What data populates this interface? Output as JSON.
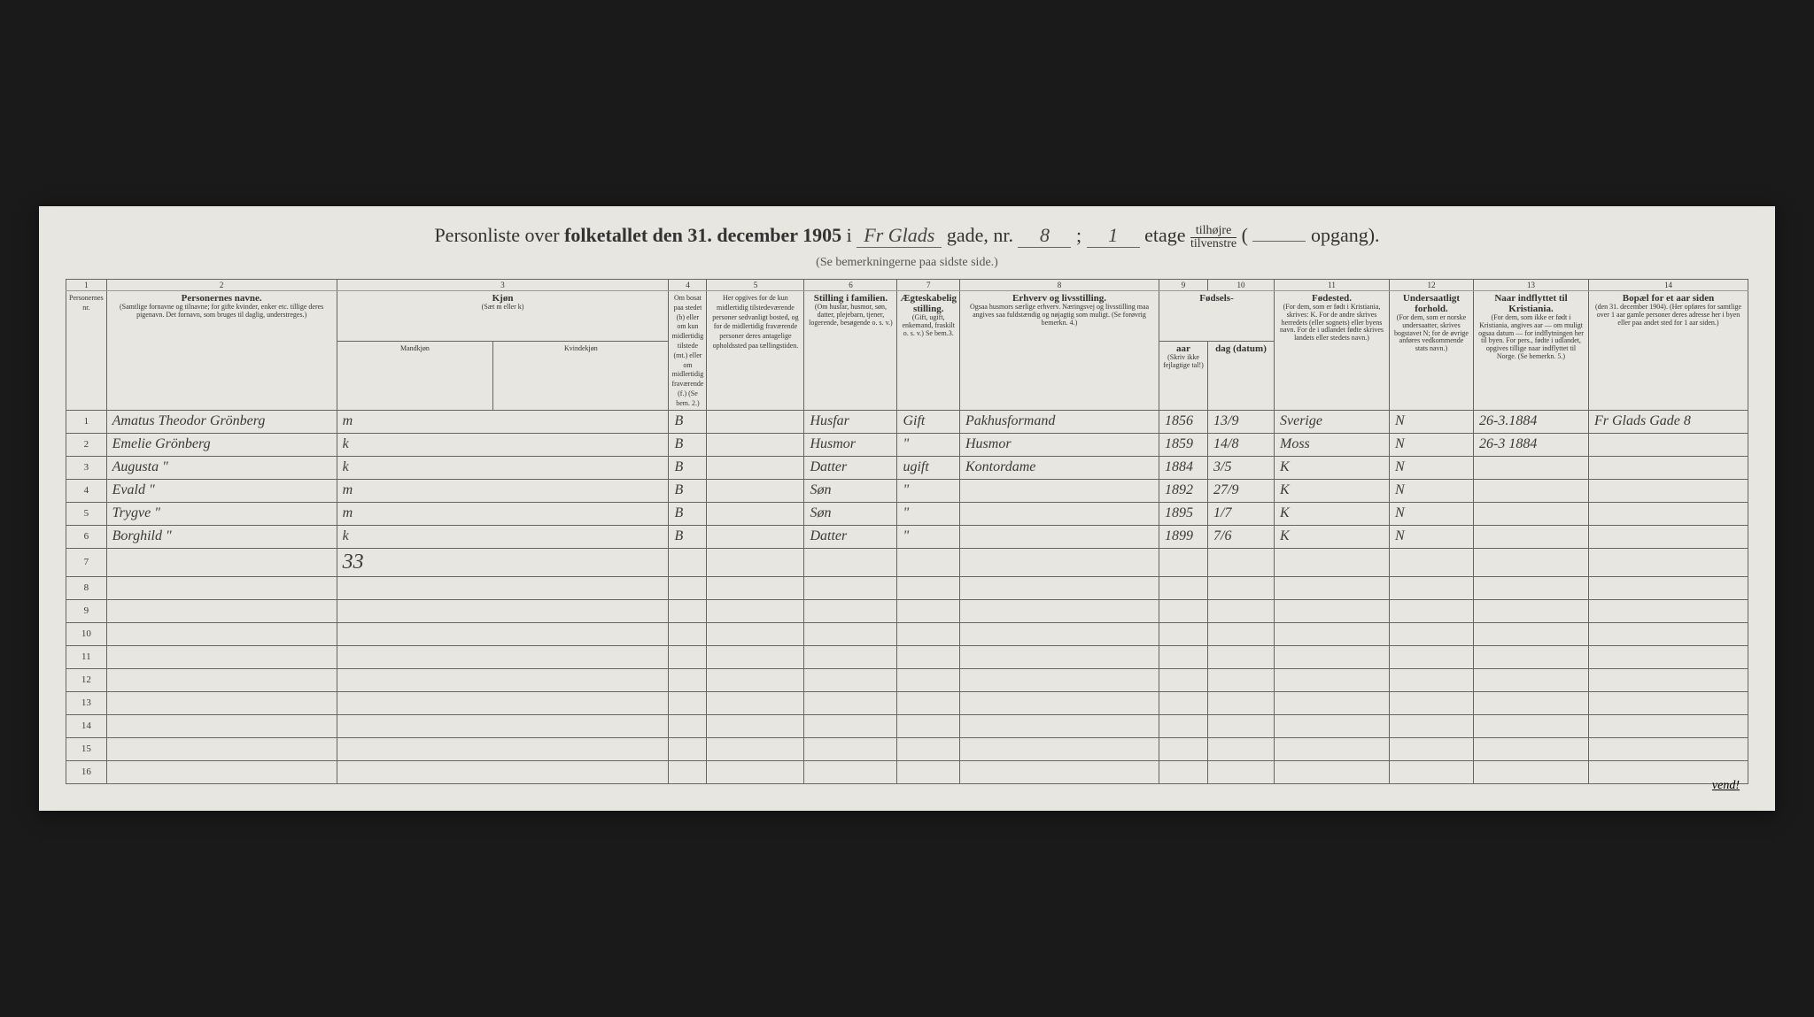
{
  "title": {
    "prefix": "Personliste over",
    "bold": "folketallet den 31. december 1905",
    "i": "i",
    "street_hw": "Fr Glads",
    "gade": "gade, nr.",
    "nr_hw": "8",
    "semi": ";",
    "etage_hw": "1",
    "etage": "etage",
    "tilhojre": "tilhøjre",
    "tilvenstre": "tilvenstre",
    "opgang_hw": "",
    "opgang": "opgang)."
  },
  "subtitle": "(Se bemerkningerne paa sidste side.)",
  "col_nums": [
    "1",
    "2",
    "3",
    "4",
    "5",
    "6",
    "7",
    "8",
    "9",
    "10",
    "11",
    "12",
    "13",
    "14"
  ],
  "headers": {
    "nr": "Personernes nr.",
    "navne": "Personernes navne.",
    "navne_sub": "(Samtlige fornavne og tilnavne; for gifte kvinder, enker etc. tillige deres pigenavn. Det fornavn, som bruges til daglig, understreges.)",
    "kjonn": "Kjøn",
    "kjonn_sub": "(Sæt m eller k)",
    "kjonn_sub2_m": "Mandkjøn",
    "kjonn_sub2_k": "Kvindekjøn",
    "bosatt": "Om bosat paa stedet (b) eller om kun midlertidig tilstede (mt.) eller om midlertidig fraværende (f.) (Se bem. 2.)",
    "midl": "Her opgives for de kun midlertidig tilstedeværende personer sedvanligt bosted, og for de midlertidig fraværende personer deres antagelige opholdssted paa tællingstiden.",
    "stilling": "Stilling i familien.",
    "stilling_sub": "(Om husfar, husmor, søn, datter, plejebarn, tjener, logerende, besøgende o. s. v.)",
    "aegte": "Ægteskabelig stilling.",
    "aegte_sub": "(Gift, ugift, enkemand, fraskilt o. s. v.) Se bem.3.",
    "erhverv": "Erhverv og livsstilling.",
    "erhverv_sub": "Ogsaa husmors særlige erhverv. Næringsvej og livsstilling maa angives saa fuldstændig og nøjagtig som muligt. (Se forøvrig bemerkn. 4.)",
    "fodsels": "Fødsels-",
    "aar": "aar",
    "dag": "dag (datum)",
    "fodsels_sub": "(Skriv ikke fejlagtige tal!)",
    "fodested": "Fødested.",
    "fodested_sub": "(For dem, som er født i Kristiania, skrives: K. For de andre skrives herredets (eller sognets) eller byens navn. For de i udlandet fødte skrives landets eller stedets navn.)",
    "under": "Undersaatligt forhold.",
    "under_sub": "(For dem, som er norske undersaatter, skrives bogstavet N; for de øvrige anføres vedkommende stats navn.)",
    "indfl": "Naar indflyttet til Kristiania.",
    "indfl_sub": "(For dem, som ikke er født i Kristiania, angives aar — om muligt ogsaa datum — for indflytningen her til byen. For pers., fødte i udlandet, opgives tillige naar indflyttet til Norge. (Se bemerkn. 5.)",
    "bopael": "Bopæl for et aar siden",
    "bopael_sub": "(den 31. december 1904). (Her opføres for samtlige over 1 aar gamle personer deres adresse her i byen eller paa andet sted for 1 aar siden.)"
  },
  "rows": [
    {
      "nr": "1",
      "name": "Amatus Theodor Grönberg",
      "kjonn": "m",
      "bosatt": "B",
      "midl": "",
      "stilling": "Husfar",
      "aegte": "Gift",
      "erhverv": "Pakhusformand",
      "aar": "1856",
      "dag": "13/9",
      "fodested": "Sverige",
      "under": "N",
      "indfl": "26-3.1884",
      "bopael": "Fr Glads Gade 8"
    },
    {
      "nr": "2",
      "name": "Emelie Grönberg",
      "kjonn": "k",
      "bosatt": "B",
      "midl": "",
      "stilling": "Husmor",
      "aegte": "\"",
      "erhverv": "Husmor",
      "aar": "1859",
      "dag": "14/8",
      "fodested": "Moss",
      "under": "N",
      "indfl": "26-3 1884",
      "bopael": ""
    },
    {
      "nr": "3",
      "name": "Augusta       \"",
      "kjonn": "k",
      "bosatt": "B",
      "midl": "",
      "stilling": "Datter",
      "aegte": "ugift",
      "erhverv": "Kontordame",
      "aar": "1884",
      "dag": "3/5",
      "fodested": "K",
      "under": "N",
      "indfl": "",
      "bopael": ""
    },
    {
      "nr": "4",
      "name": "Evald          \"",
      "kjonn": "m",
      "bosatt": "B",
      "midl": "",
      "stilling": "Søn",
      "aegte": "\"",
      "erhverv": "",
      "aar": "1892",
      "dag": "27/9",
      "fodested": "K",
      "under": "N",
      "indfl": "",
      "bopael": ""
    },
    {
      "nr": "5",
      "name": "Trygve        \"",
      "kjonn": "m",
      "bosatt": "B",
      "midl": "",
      "stilling": "Søn",
      "aegte": "\"",
      "erhverv": "",
      "aar": "1895",
      "dag": "1/7",
      "fodested": "K",
      "under": "N",
      "indfl": "",
      "bopael": ""
    },
    {
      "nr": "6",
      "name": "Borghild     \"",
      "kjonn": "k",
      "bosatt": "B",
      "midl": "",
      "stilling": "Datter",
      "aegte": "\"",
      "erhverv": "",
      "aar": "1899",
      "dag": "7/6",
      "fodested": "K",
      "under": "N",
      "indfl": "",
      "bopael": ""
    }
  ],
  "empty_rows": [
    "7",
    "8",
    "9",
    "10",
    "11",
    "12",
    "13",
    "14",
    "15",
    "16"
  ],
  "extra_mark": "33",
  "footer": "vend!"
}
